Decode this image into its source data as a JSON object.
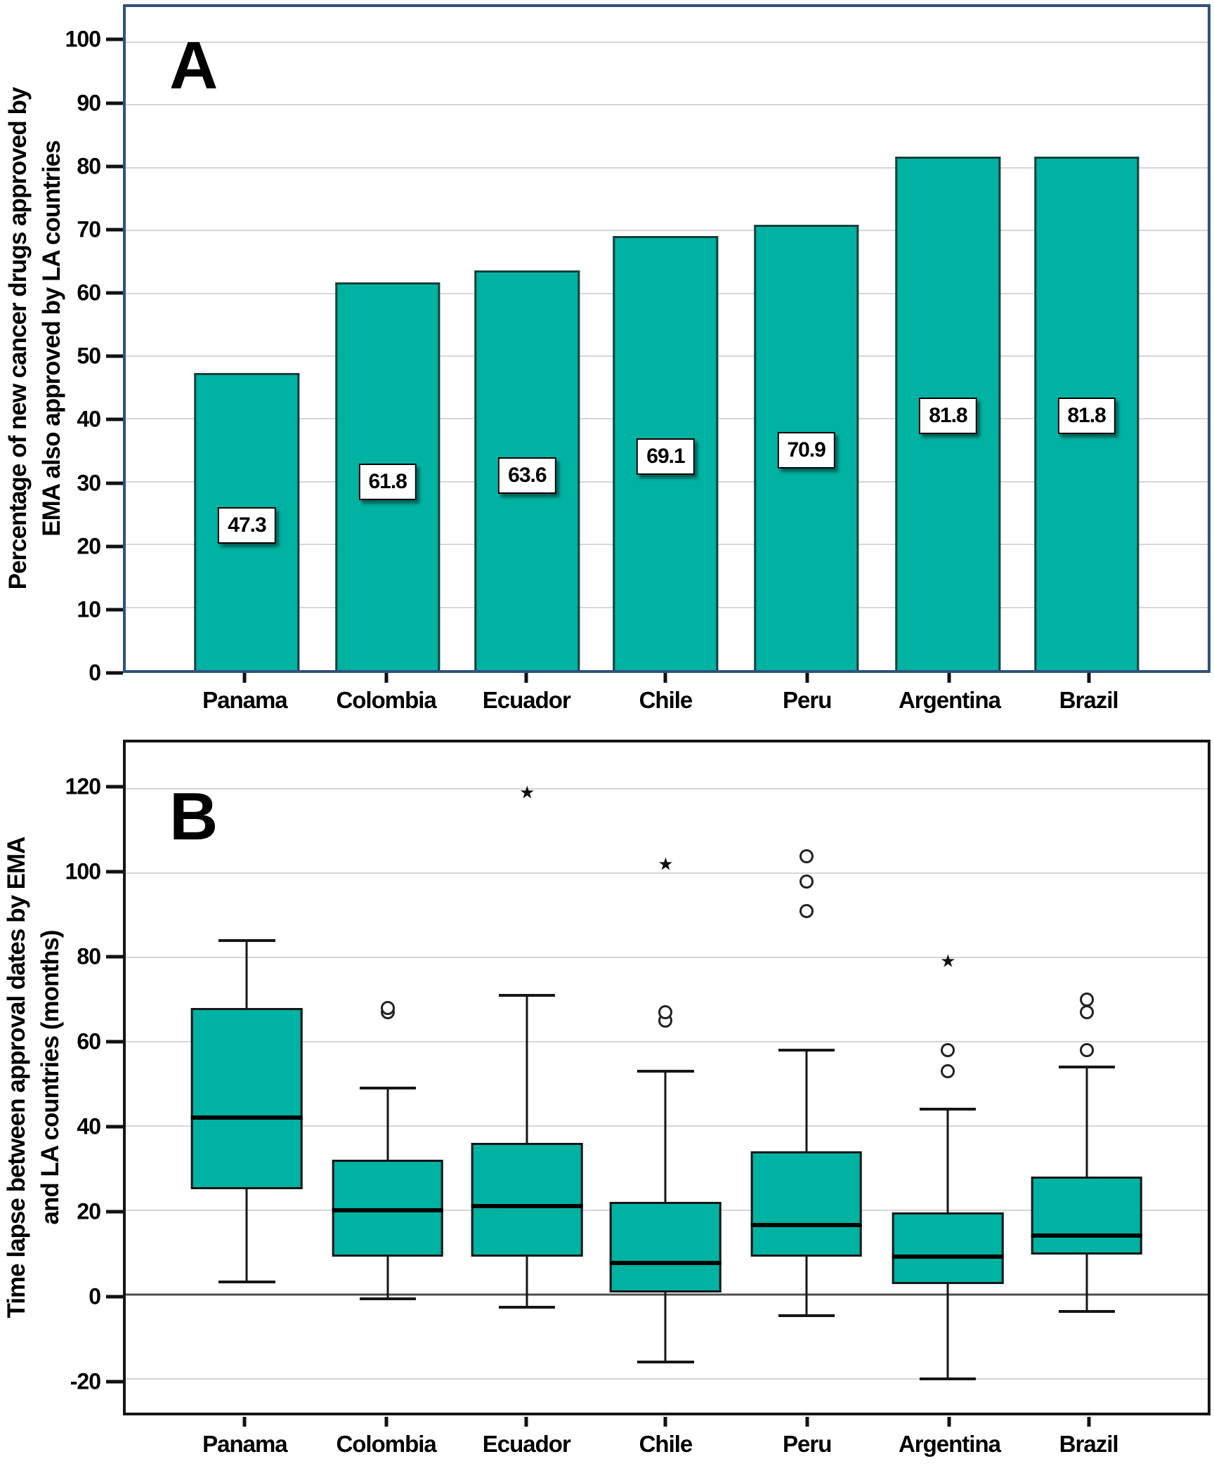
{
  "colors": {
    "box_fill": "#00b2a2",
    "bar_outline": "#14403c",
    "panel_a_border": "#31517e",
    "panel_b_border": "#161616",
    "gridline": "#d6d6d6",
    "zero_line": "#4f4f4f",
    "text": "#000000"
  },
  "markers": {
    "outlier": "circle",
    "extreme": "star",
    "extreme_glyph": "★"
  },
  "chart_data": [
    {
      "type": "bar",
      "panel_letter": "A",
      "ylabel_lines": [
        "Percentage of new cancer drugs approved by",
        "EMA also approved by LA countries"
      ],
      "categories": [
        "Panama",
        "Colombia",
        "Ecuador",
        "Chile",
        "Peru",
        "Argentina",
        "Brazil"
      ],
      "values": [
        47.3,
        61.8,
        63.6,
        69.1,
        70.9,
        81.8,
        81.8
      ],
      "bar_labels": [
        "47.3",
        "61.8",
        "63.6",
        "69.1",
        "70.9",
        "81.8",
        "81.8"
      ],
      "bar_label_y": [
        23,
        30,
        31,
        34,
        35,
        40.5,
        40.5
      ],
      "y_ticks": [
        0,
        10,
        20,
        30,
        40,
        50,
        60,
        70,
        80,
        90,
        100
      ],
      "ylim": [
        0,
        105.6
      ],
      "grid": true,
      "legend": "none"
    },
    {
      "type": "boxplot",
      "panel_letter": "B",
      "ylabel_lines": [
        "Time lapse between approval dates by EMA",
        "and LA countries (months)"
      ],
      "categories": [
        "Panama",
        "Colombia",
        "Ecuador",
        "Chile",
        "Peru",
        "Argentina",
        "Brazil"
      ],
      "series": [
        {
          "name": "Panama",
          "low": 3,
          "q1": 25,
          "median": 42,
          "q3": 68,
          "high": 84,
          "outliers": [],
          "extremes": []
        },
        {
          "name": "Colombia",
          "low": -1,
          "q1": 9,
          "median": 20,
          "q3": 32,
          "high": 49,
          "outliers": [
            67,
            68
          ],
          "extremes": []
        },
        {
          "name": "Ecuador",
          "low": -3,
          "q1": 9,
          "median": 21,
          "q3": 36,
          "high": 71,
          "outliers": [],
          "extremes": [
            119
          ]
        },
        {
          "name": "Chile",
          "low": -16,
          "q1": 0.5,
          "median": 7.5,
          "q3": 22,
          "high": 53,
          "outliers": [
            65,
            67
          ],
          "extremes": [
            102
          ]
        },
        {
          "name": "Peru",
          "low": -5,
          "q1": 9,
          "median": 16.5,
          "q3": 34,
          "high": 58,
          "outliers": [
            91,
            98,
            104
          ],
          "extremes": []
        },
        {
          "name": "Argentina",
          "low": -20,
          "q1": 2.5,
          "median": 9,
          "q3": 19.5,
          "high": 44,
          "outliers": [
            53,
            58
          ],
          "extremes": [
            79
          ]
        },
        {
          "name": "Brazil",
          "low": -4,
          "q1": 9.5,
          "median": 14,
          "q3": 28,
          "high": 54,
          "outliers": [
            58,
            67,
            70
          ],
          "extremes": []
        }
      ],
      "y_ticks": [
        120,
        100,
        80,
        60,
        40,
        20,
        0,
        -20
      ],
      "ylim": [
        -28,
        131
      ],
      "zero_line": 0,
      "grid": true,
      "legend": "none"
    }
  ]
}
